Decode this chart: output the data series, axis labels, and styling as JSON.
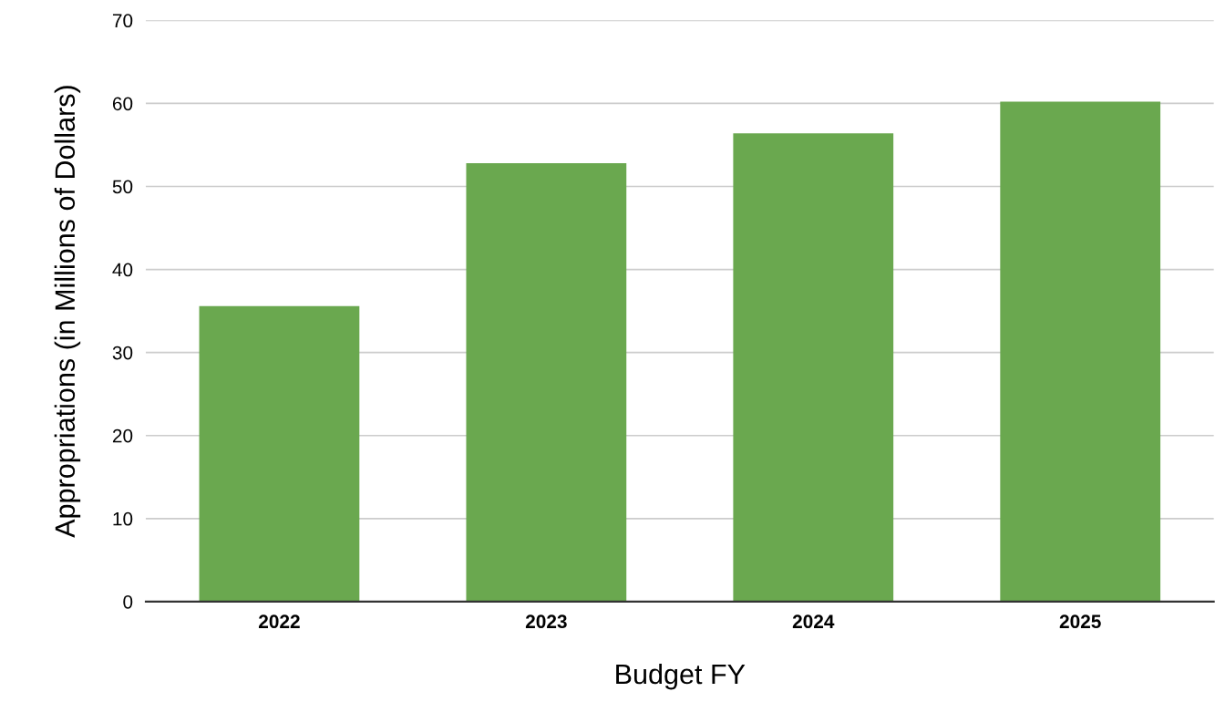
{
  "chart_data": {
    "type": "bar",
    "xlabel": "Budget FY",
    "ylabel": "Appropriations (in Millions of Dollars)",
    "categories": [
      "2022",
      "2023",
      "2024",
      "2025"
    ],
    "values": [
      35.6,
      52.8,
      56.4,
      60.2
    ],
    "color": "#6aa84f",
    "ylim": [
      0,
      70
    ],
    "yticks": [
      0,
      10,
      20,
      30,
      40,
      50,
      60,
      70
    ],
    "grid": "y",
    "legend": false
  }
}
